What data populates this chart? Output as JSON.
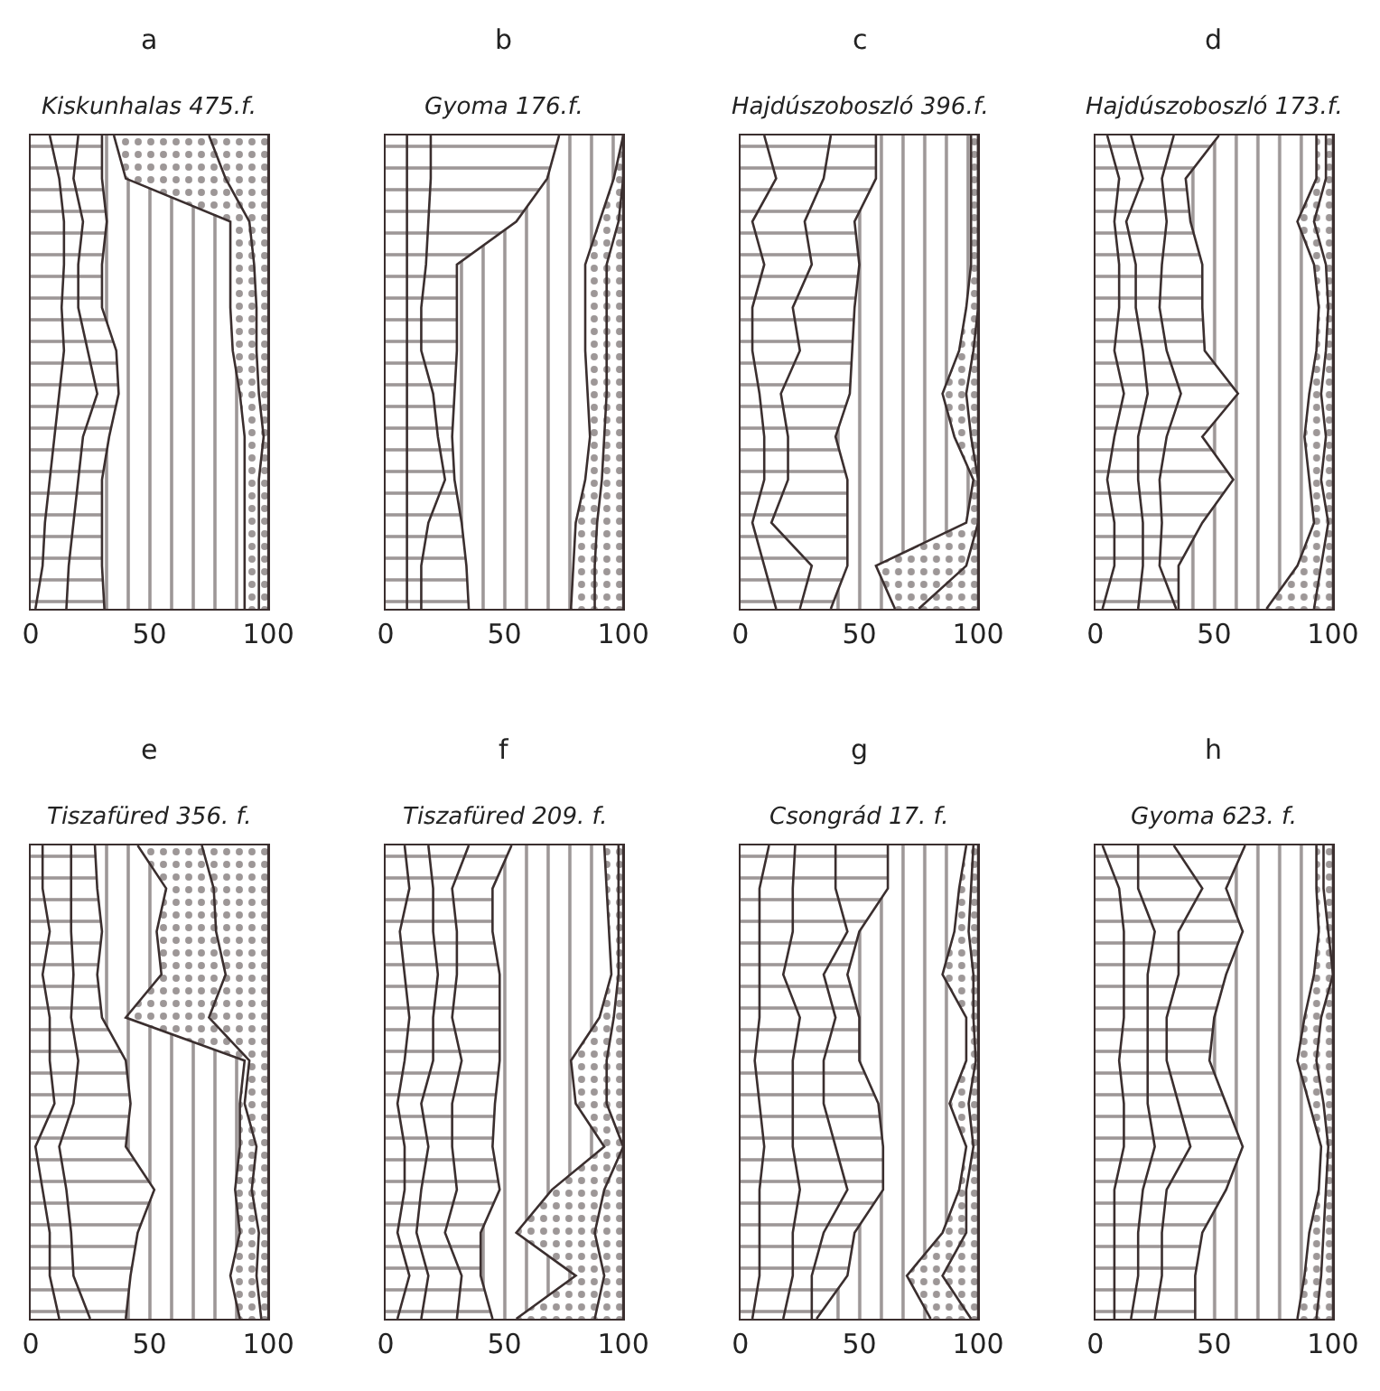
{
  "chart_data": [
    {
      "type": "area",
      "stacked": true,
      "orientation": "horizontal",
      "tick_labels": "x",
      "title": "a",
      "subtitle": "Kiskunhalas 475.f.",
      "xlim": [
        0,
        100
      ],
      "xticks": [
        0,
        50,
        100
      ],
      "categories": [
        null,
        null,
        null,
        null,
        null,
        null,
        null,
        null,
        null,
        null,
        null,
        null
      ],
      "series": [
        {
          "color": "#3b2f2f",
          "values": [
            8,
            12,
            14,
            14,
            13,
            14,
            12,
            10,
            8,
            6,
            5,
            2
          ]
        },
        {
          "color": "#3b2f2f",
          "values": [
            12,
            6,
            8,
            6,
            7,
            10,
            16,
            12,
            12,
            12,
            11,
            13
          ]
        },
        {
          "color": "#3b2f2f",
          "values": [
            10,
            12,
            10,
            10,
            10,
            12,
            9,
            11,
            10,
            12,
            14,
            16
          ]
        },
        {
          "color": "#3b2f2f",
          "values": [
            5,
            10,
            52,
            54,
            54,
            49,
            51,
            57,
            60,
            60,
            60,
            59
          ]
        },
        {
          "color": "#3b2f2f",
          "values": [
            40,
            42,
            8,
            10,
            11,
            10,
            8,
            8,
            6,
            6,
            6,
            6
          ]
        },
        {
          "color": "#3b2f2f",
          "values": [
            25,
            18,
            8,
            6,
            5,
            5,
            4,
            2,
            4,
            4,
            4,
            4
          ]
        }
      ]
    },
    {
      "type": "area",
      "stacked": true,
      "orientation": "horizontal",
      "tick_labels": "x",
      "title": "b",
      "subtitle": "Gyoma 176.f.",
      "xlim": [
        0,
        100
      ],
      "xticks": [
        0,
        50,
        100
      ],
      "categories": [
        null,
        null,
        null,
        null,
        null,
        null,
        null,
        null,
        null,
        null,
        null,
        null
      ],
      "series": [
        {
          "color": "#3b2f2f",
          "values": [
            9,
            9,
            9,
            9,
            9,
            9,
            9,
            9,
            9,
            9,
            9,
            9
          ]
        },
        {
          "color": "#3b2f2f",
          "values": [
            10,
            10,
            9,
            8,
            6,
            6,
            11,
            13,
            16,
            9,
            6,
            6
          ]
        },
        {
          "color": "#3b2f2f",
          "values": [
            54,
            49,
            37,
            13,
            15,
            15,
            9,
            6,
            4,
            14,
            19,
            20
          ]
        },
        {
          "color": "#3b2f2f",
          "values": [
            27,
            28,
            35,
            54,
            54,
            54,
            56,
            58,
            55,
            48,
            45,
            43
          ]
        },
        {
          "color": "#3b2f2f",
          "values": [
            0,
            4,
            8,
            9,
            9,
            9,
            8,
            6,
            7,
            9,
            9,
            10
          ]
        },
        {
          "color": "#3b2f2f",
          "values": [
            0,
            0,
            2,
            7,
            7,
            7,
            7,
            8,
            9,
            11,
            12,
            12
          ]
        }
      ]
    },
    {
      "type": "area",
      "stacked": true,
      "orientation": "horizontal",
      "tick_labels": "x",
      "title": "c",
      "subtitle": "Hajdúszoboszló 396.f.",
      "xlim": [
        0,
        100
      ],
      "xticks": [
        0,
        50,
        100
      ],
      "categories": [
        null,
        null,
        null,
        null,
        null,
        null,
        null,
        null,
        null,
        null,
        null,
        null
      ],
      "series": [
        {
          "color": "#3b2f2f",
          "values": [
            10,
            15,
            5,
            10,
            5,
            5,
            8,
            10,
            10,
            5,
            10,
            15
          ]
        },
        {
          "color": "#3b2f2f",
          "values": [
            28,
            20,
            22,
            20,
            17,
            20,
            9,
            10,
            10,
            8,
            20,
            10
          ]
        },
        {
          "color": "#3b2f2f",
          "values": [
            19,
            22,
            21,
            20,
            26,
            22,
            29,
            20,
            25,
            32,
            15,
            13
          ]
        },
        {
          "color": "#3b2f2f",
          "values": [
            40,
            40,
            49,
            47,
            47,
            45,
            39,
            50,
            53,
            50,
            12,
            27
          ]
        },
        {
          "color": "#3b2f2f",
          "values": [
            3,
            3,
            3,
            3,
            5,
            6,
            10,
            7,
            2,
            5,
            38,
            10
          ]
        },
        {
          "color": "#3b2f2f",
          "values": [
            0,
            0,
            0,
            0,
            0,
            2,
            5,
            3,
            0,
            0,
            5,
            25
          ]
        }
      ]
    },
    {
      "type": "area",
      "stacked": true,
      "orientation": "horizontal",
      "tick_labels": "x",
      "title": "d",
      "subtitle": "Hajdúszoboszló 173.f.",
      "xlim": [
        0,
        100
      ],
      "xticks": [
        0,
        50,
        100
      ],
      "categories": [
        null,
        null,
        null,
        null,
        null,
        null,
        null,
        null,
        null,
        null,
        null,
        null
      ],
      "series": [
        {
          "color": "#3b2f2f",
          "values": [
            5,
            10,
            8,
            10,
            10,
            8,
            12,
            8,
            5,
            8,
            8,
            3
          ]
        },
        {
          "color": "#3b2f2f",
          "values": [
            10,
            10,
            5,
            7,
            7,
            12,
            10,
            10,
            13,
            12,
            12,
            15
          ]
        },
        {
          "color": "#3b2f2f",
          "values": [
            18,
            8,
            17,
            11,
            10,
            10,
            14,
            12,
            9,
            8,
            7,
            16
          ]
        },
        {
          "color": "#3b2f2f",
          "values": [
            19,
            10,
            10,
            17,
            18,
            16,
            24,
            15,
            31,
            17,
            8,
            1
          ]
        },
        {
          "color": "#3b2f2f",
          "values": [
            41,
            55,
            45,
            47,
            49,
            47,
            30,
            43,
            32,
            47,
            50,
            37
          ]
        },
        {
          "color": "#3b2f2f",
          "values": [
            4,
            4,
            7,
            5,
            4,
            4,
            5,
            9,
            5,
            6,
            10,
            20
          ]
        },
        {
          "color": "#3b2f2f",
          "values": [
            3,
            3,
            8,
            3,
            2,
            3,
            5,
            3,
            5,
            2,
            5,
            8
          ]
        }
      ]
    },
    {
      "type": "area",
      "stacked": true,
      "orientation": "horizontal",
      "tick_labels": "x",
      "title": "e",
      "subtitle": "Tiszafüred 356. f.",
      "xlim": [
        0,
        100
      ],
      "xticks": [
        0,
        50,
        100
      ],
      "categories": [
        null,
        null,
        null,
        null,
        null,
        null,
        null,
        null,
        null,
        null,
        null,
        null
      ],
      "series": [
        {
          "color": "#3b2f2f",
          "values": [
            5,
            5,
            8,
            5,
            8,
            8,
            10,
            2,
            5,
            8,
            8,
            12
          ]
        },
        {
          "color": "#3b2f2f",
          "values": [
            12,
            12,
            9,
            13,
            9,
            12,
            8,
            10,
            10,
            9,
            10,
            13
          ]
        },
        {
          "color": "#3b2f2f",
          "values": [
            10,
            11,
            13,
            10,
            13,
            20,
            24,
            28,
            37,
            28,
            24,
            15
          ]
        },
        {
          "color": "#3b2f2f",
          "values": [
            18,
            29,
            23,
            27,
            10,
            50,
            46,
            48,
            34,
            43,
            42,
            48
          ]
        },
        {
          "color": "#3b2f2f",
          "values": [
            27,
            20,
            25,
            27,
            35,
            2,
            2,
            7,
            7,
            8,
            11,
            9
          ]
        },
        {
          "color": "#3b2f2f",
          "values": [
            28,
            23,
            22,
            18,
            25,
            8,
            10,
            5,
            7,
            4,
            5,
            3
          ]
        }
      ]
    },
    {
      "type": "area",
      "stacked": true,
      "orientation": "horizontal",
      "tick_labels": "x",
      "title": "f",
      "subtitle": "Tiszafüred 209. f.",
      "xlim": [
        0,
        100
      ],
      "xticks": [
        0,
        50,
        100
      ],
      "categories": [
        null,
        null,
        null,
        null,
        null,
        null,
        null,
        null,
        null,
        null,
        null,
        null
      ],
      "series": [
        {
          "color": "#3b2f2f",
          "values": [
            8,
            10,
            6,
            8,
            10,
            8,
            5,
            8,
            8,
            5,
            10,
            5
          ]
        },
        {
          "color": "#3b2f2f",
          "values": [
            10,
            10,
            14,
            14,
            10,
            12,
            10,
            10,
            7,
            8,
            8,
            10
          ]
        },
        {
          "color": "#3b2f2f",
          "values": [
            17,
            8,
            10,
            8,
            8,
            12,
            13,
            10,
            15,
            12,
            14,
            15
          ]
        },
        {
          "color": "#3b2f2f",
          "values": [
            18,
            17,
            15,
            18,
            20,
            16,
            18,
            17,
            18,
            15,
            8,
            15
          ]
        },
        {
          "color": "#3b2f2f",
          "values": [
            39,
            48,
            49,
            47,
            42,
            30,
            34,
            47,
            22,
            15,
            40,
            10
          ]
        },
        {
          "color": "#3b2f2f",
          "values": [
            6,
            5,
            4,
            3,
            6,
            15,
            13,
            8,
            22,
            33,
            12,
            33
          ]
        },
        {
          "color": "#3b2f2f",
          "values": [
            2,
            2,
            2,
            2,
            4,
            7,
            7,
            0,
            8,
            12,
            8,
            12
          ]
        }
      ]
    },
    {
      "type": "area",
      "stacked": true,
      "orientation": "horizontal",
      "tick_labels": "x",
      "title": "g",
      "subtitle": "Csongrád 17. f.",
      "xlim": [
        0,
        100
      ],
      "xticks": [
        0,
        50,
        100
      ],
      "categories": [
        null,
        null,
        null,
        null,
        null,
        null,
        null,
        null,
        null,
        null,
        null,
        null
      ],
      "series": [
        {
          "color": "#3b2f2f",
          "values": [
            12,
            8,
            8,
            8,
            8,
            6,
            8,
            10,
            8,
            8,
            8,
            5
          ]
        },
        {
          "color": "#3b2f2f",
          "values": [
            11,
            14,
            14,
            10,
            17,
            16,
            14,
            12,
            17,
            14,
            14,
            13
          ]
        },
        {
          "color": "#3b2f2f",
          "values": [
            17,
            18,
            23,
            17,
            15,
            13,
            13,
            18,
            20,
            13,
            8,
            12
          ]
        },
        {
          "color": "#3b2f2f",
          "values": [
            22,
            22,
            5,
            10,
            10,
            15,
            23,
            20,
            15,
            13,
            15,
            2
          ]
        },
        {
          "color": "#3b2f2f",
          "values": [
            33,
            30,
            40,
            40,
            45,
            45,
            30,
            35,
            32,
            37,
            25,
            48
          ]
        },
        {
          "color": "#3b2f2f",
          "values": [
            3,
            5,
            6,
            13,
            3,
            4,
            8,
            3,
            3,
            10,
            15,
            17
          ]
        },
        {
          "color": "#3b2f2f",
          "values": [
            2,
            3,
            4,
            2,
            2,
            1,
            4,
            2,
            5,
            5,
            15,
            3
          ]
        }
      ]
    },
    {
      "type": "area",
      "stacked": true,
      "orientation": "horizontal",
      "tick_labels": "x",
      "title": "h",
      "subtitle": "Gyoma 623. f.",
      "xlim": [
        0,
        100
      ],
      "xticks": [
        0,
        50,
        100
      ],
      "categories": [
        null,
        null,
        null,
        null,
        null,
        null,
        null,
        null,
        null,
        null,
        null,
        null
      ],
      "series": [
        {
          "color": "#3b2f2f",
          "values": [
            3,
            10,
            12,
            12,
            12,
            10,
            12,
            12,
            8,
            8,
            8,
            8
          ]
        },
        {
          "color": "#3b2f2f",
          "values": [
            15,
            8,
            13,
            10,
            10,
            12,
            10,
            13,
            12,
            10,
            10,
            7
          ]
        },
        {
          "color": "#3b2f2f",
          "values": [
            15,
            27,
            10,
            13,
            8,
            8,
            13,
            15,
            10,
            10,
            10,
            10
          ]
        },
        {
          "color": "#3b2f2f",
          "values": [
            30,
            10,
            27,
            20,
            20,
            18,
            20,
            22,
            25,
            17,
            14,
            17
          ]
        },
        {
          "color": "#3b2f2f",
          "values": [
            30,
            38,
            32,
            37,
            38,
            37,
            35,
            33,
            39,
            45,
            46,
            43
          ]
        },
        {
          "color": "#3b2f2f",
          "values": [
            3,
            3,
            4,
            8,
            7,
            8,
            6,
            3,
            3,
            6,
            7,
            8
          ]
        },
        {
          "color": "#3b2f2f",
          "values": [
            4,
            4,
            2,
            0,
            5,
            7,
            4,
            2,
            3,
            4,
            5,
            7
          ]
        }
      ]
    }
  ]
}
